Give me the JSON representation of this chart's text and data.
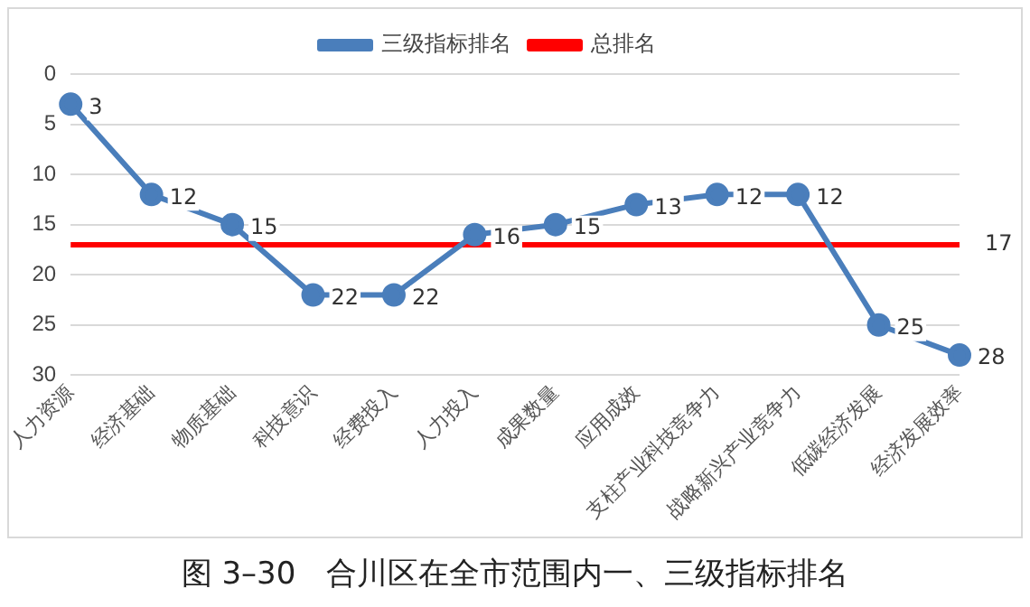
{
  "chart_data": {
    "type": "line",
    "title": "图 3–30　合川区在全市范围内一、三级指标排名",
    "categories": [
      "人力资源",
      "经济基础",
      "物质基础",
      "科技意识",
      "经费投入",
      "人力投入",
      "成果数量",
      "应用成效",
      "支柱产业科技竞争力",
      "战略新兴产业竞争力",
      "低碳经济发展",
      "经济发展效率"
    ],
    "series": [
      {
        "name": "三级指标排名",
        "color": "#4a7ebb",
        "marker": "circle",
        "values": [
          3,
          12,
          15,
          22,
          22,
          16,
          15,
          13,
          12,
          12,
          25,
          28
        ],
        "value_labels": [
          "3",
          "12",
          "15",
          "22",
          "22",
          "16",
          "15",
          "13",
          "12",
          "12",
          "25",
          "28"
        ]
      },
      {
        "name": "总排名",
        "color": "#ff0000",
        "marker": "none",
        "values": [
          17,
          17,
          17,
          17,
          17,
          17,
          17,
          17,
          17,
          17,
          17,
          17
        ],
        "value_labels": [
          null,
          null,
          null,
          null,
          null,
          null,
          null,
          null,
          null,
          null,
          null,
          "17"
        ]
      }
    ],
    "ylim": [
      30,
      0
    ],
    "yticks": [
      0,
      5,
      10,
      15,
      20,
      25,
      30
    ],
    "grid": "y",
    "legend": "top"
  }
}
